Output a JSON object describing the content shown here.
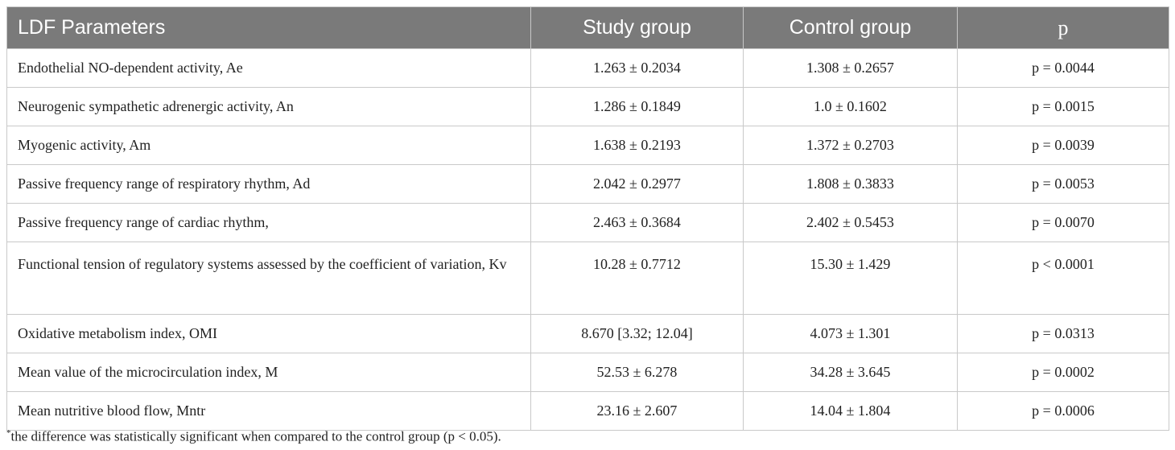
{
  "table": {
    "headers": [
      "LDF Parameters",
      "Study group",
      "Control group",
      "p"
    ],
    "rows": [
      [
        "Endothelial NO-dependent activity, Ae",
        "1.263 ± 0.2034",
        "1.308 ± 0.2657",
        "p = 0.0044"
      ],
      [
        "Neurogenic sympathetic adrenergic activity, An",
        "1.286 ± 0.1849",
        "1.0 ± 0.1602",
        "p = 0.0015"
      ],
      [
        "Myogenic activity, Am",
        "1.638 ± 0.2193",
        "1.372 ± 0.2703",
        "p = 0.0039"
      ],
      [
        "Passive frequency range of respiratory rhythm, Ad",
        "2.042 ± 0.2977",
        "1.808 ± 0.3833",
        "p = 0.0053"
      ],
      [
        "Passive frequency range of cardiac rhythm,",
        "2.463 ± 0.3684",
        "2.402 ± 0.5453",
        "p = 0.0070"
      ],
      [
        "Functional tension of regulatory systems assessed by the coefficient of variation, Kv",
        "10.28 ± 0.7712",
        "15.30 ± 1.429",
        "p < 0.0001"
      ],
      [
        "Oxidative metabolism index, OMI",
        "8.670 [3.32; 12.04]",
        "4.073 ± 1.301",
        "p = 0.0313"
      ],
      [
        "Mean value of the microcirculation index, M",
        "52.53 ± 6.278",
        "34.28 ± 3.645",
        "p = 0.0002"
      ],
      [
        "Mean nutritive blood flow, Mntr",
        "23.16 ± 2.607",
        "14.04 ± 1.804",
        "p = 0.0006"
      ]
    ]
  },
  "footnote": {
    "marker": "*",
    "text": "the difference was statistically significant when compared to the control group (p < 0.05)."
  }
}
